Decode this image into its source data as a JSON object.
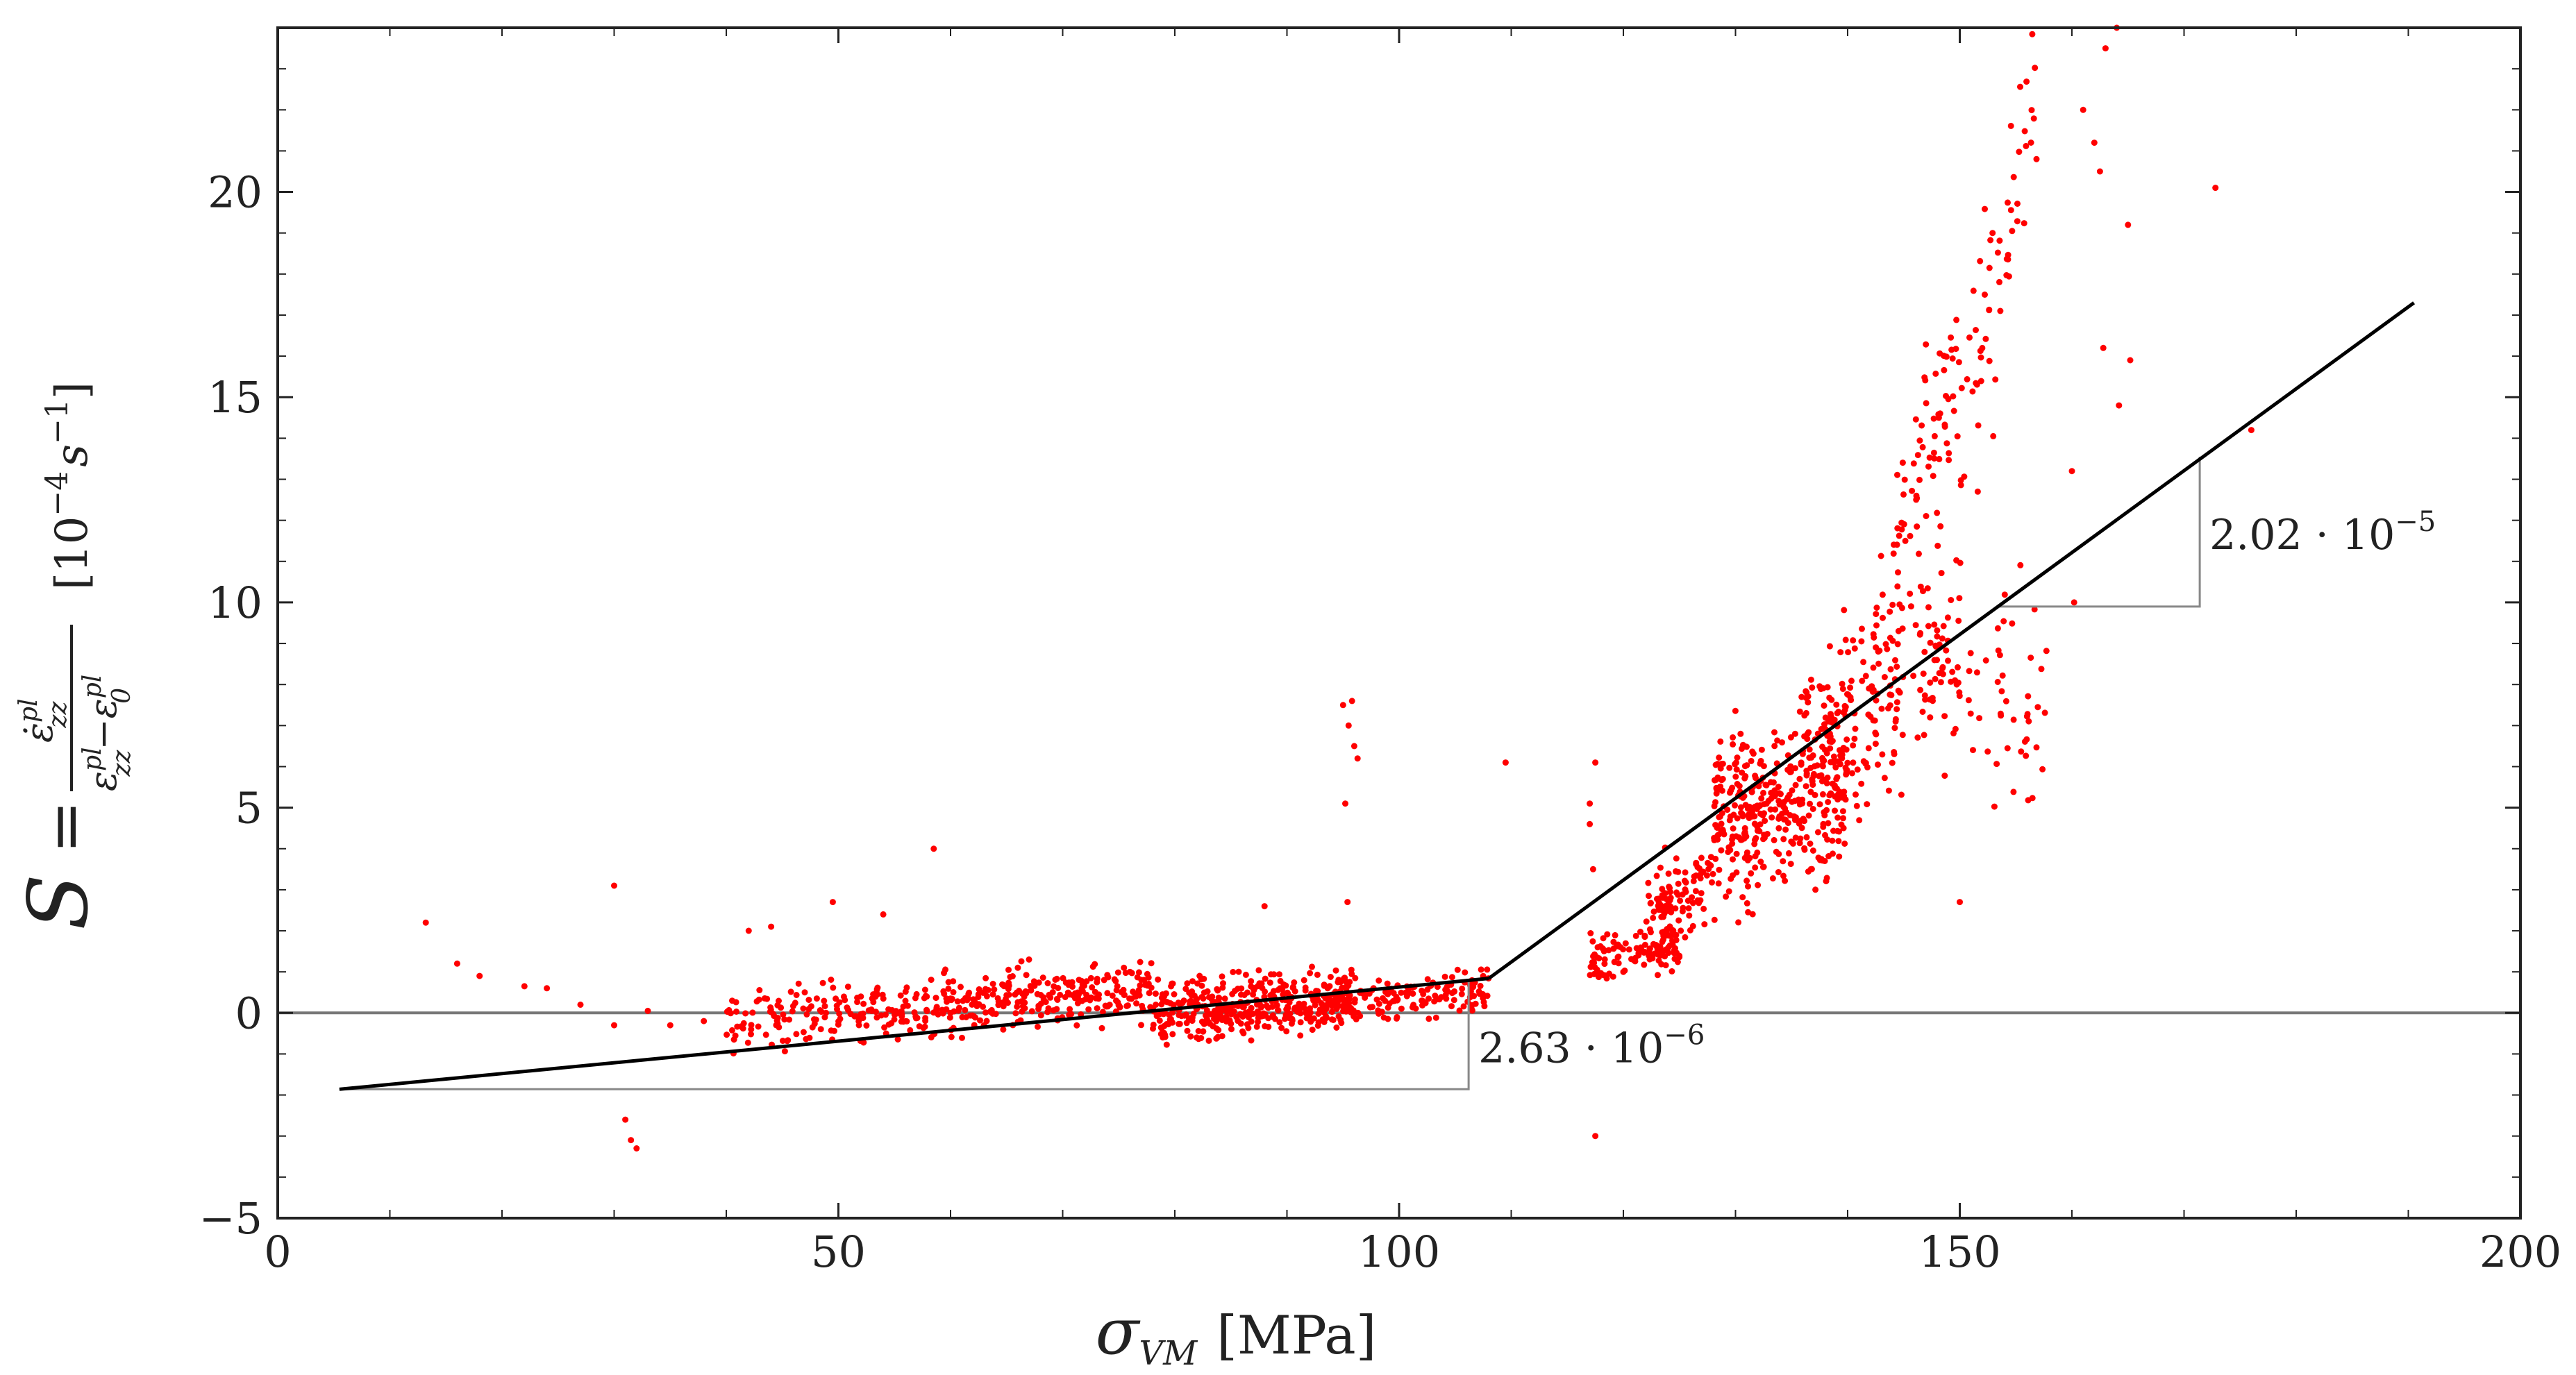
{
  "chart_data": {
    "type": "scatter",
    "xlabel": {
      "symbol": "σ",
      "subscript": "VM",
      "unit": "[MPa]"
    },
    "ylabel": {
      "symbol": "S",
      "equals": "=",
      "num_base": "ε̇",
      "num_sup": "pl",
      "num_sub": "zz",
      "den_a_base": "ε",
      "den_a_sup": "pl",
      "den_a_sub": "zz",
      "minus": "−",
      "den_b_base": "ε",
      "den_b_sup": "pl",
      "den_b_sub": "0",
      "unit_open": "[10",
      "unit_exp": "−4",
      "unit_s": "s",
      "unit_exp2": "−1",
      "unit_close": "]"
    },
    "xlim": [
      0,
      200
    ],
    "ylim": [
      -5,
      24
    ],
    "xticks": [
      0,
      50,
      100,
      150,
      200
    ],
    "xtick_labels": [
      "0",
      "50",
      "100",
      "150",
      "200"
    ],
    "yticks": [
      -5,
      0,
      5,
      10,
      15,
      20
    ],
    "ytick_labels": [
      "−5",
      "0",
      "5",
      "10",
      "15",
      "20"
    ],
    "zero_line": 0,
    "fit_lines": [
      {
        "name": "fit-low",
        "points": [
          [
            5.5,
            -1.86
          ],
          [
            108,
            0.84
          ]
        ],
        "slope_label": "2.63 · 10",
        "slope_exp": "−6",
        "triangle": {
          "x0": 5.5,
          "x1": 106.2,
          "y0": -1.86,
          "y1": 0.79
        }
      },
      {
        "name": "fit-high",
        "points": [
          [
            108,
            0.84
          ],
          [
            190.5,
            17.3
          ]
        ],
        "slope_label": "2.02 · 10",
        "slope_exp": "−5",
        "triangle": {
          "x0": 153.3,
          "x1": 171.4,
          "y0": 9.9,
          "y1": 13.55
        }
      }
    ],
    "scatter_color": "#ff0000",
    "clusters": [
      {
        "x": [
          40,
          60
        ],
        "slope": 0.026,
        "intercept": -1.3,
        "jitter": 0.35,
        "n": 190
      },
      {
        "x": [
          60,
          78
        ],
        "slope": 0.026,
        "intercept": -1.4,
        "jitter": 0.35,
        "n": 240
      },
      {
        "x": [
          78,
          96
        ],
        "slope": 0.026,
        "intercept": -2.1,
        "jitter": 0.35,
        "n": 420
      },
      {
        "x": [
          96,
          108
        ],
        "slope": 0.026,
        "intercept": -2.2,
        "jitter": 0.3,
        "n": 120
      },
      {
        "x": [
          117,
          125
        ],
        "slope": 0.05,
        "intercept": -4.6,
        "jitter": 0.3,
        "n": 110
      },
      {
        "x": [
          122,
          128
        ],
        "slope": 0.15,
        "intercept": -16.0,
        "jitter": 0.5,
        "n": 110
      },
      {
        "x": [
          128,
          140
        ],
        "slope": 0.08,
        "intercept": -5.6,
        "jitter": 1.0,
        "n": 380
      },
      {
        "x": [
          136,
          150
        ],
        "slope": 0.18,
        "intercept": -18.0,
        "jitter": 1.2,
        "n": 220
      },
      {
        "x": [
          144,
          150
        ],
        "slope": 0.8,
        "intercept": -104.0,
        "jitter": 1.2,
        "n": 70
      },
      {
        "x": [
          150,
          157
        ],
        "slope": 1.2,
        "intercept": -166.0,
        "jitter": 1.6,
        "n": 60
      },
      {
        "x": [
          150,
          158
        ],
        "slope": 0.25,
        "intercept": -31.0,
        "jitter": 1.5,
        "n": 45
      }
    ],
    "outliers": [
      [
        13.2,
        2.2
      ],
      [
        16,
        1.2
      ],
      [
        18,
        0.9
      ],
      [
        22,
        0.65
      ],
      [
        24,
        0.6
      ],
      [
        27,
        0.2
      ],
      [
        30,
        3.1
      ],
      [
        30,
        -0.3
      ],
      [
        31,
        -2.6
      ],
      [
        31.5,
        -3.1
      ],
      [
        32,
        -3.3
      ],
      [
        33,
        0.05
      ],
      [
        35,
        -0.3
      ],
      [
        38,
        -0.2
      ],
      [
        42,
        2.0
      ],
      [
        44,
        2.1
      ],
      [
        47,
        0.5
      ],
      [
        49.5,
        2.7
      ],
      [
        52,
        0.4
      ],
      [
        54,
        2.4
      ],
      [
        58.5,
        4.0
      ],
      [
        60,
        0.0
      ],
      [
        63,
        0.5
      ],
      [
        66,
        1.1
      ],
      [
        67,
        1.3
      ],
      [
        76,
        1.0
      ],
      [
        88,
        2.6
      ],
      [
        95,
        7.5
      ],
      [
        95.5,
        7.0
      ],
      [
        96,
        6.5
      ],
      [
        95.2,
        5.1
      ],
      [
        95.8,
        7.6
      ],
      [
        96.3,
        6.2
      ],
      [
        95.4,
        2.7
      ],
      [
        109.5,
        6.1
      ],
      [
        117,
        5.1
      ],
      [
        117.5,
        6.1
      ],
      [
        117,
        4.6
      ],
      [
        117.3,
        3.5
      ],
      [
        117.5,
        -3.0
      ],
      [
        117.8,
        0.9
      ],
      [
        120,
        1.0
      ],
      [
        150,
        2.7
      ],
      [
        160.2,
        10.0
      ],
      [
        160,
        13.2
      ],
      [
        161,
        22.0
      ],
      [
        162,
        21.2
      ],
      [
        162.5,
        20.5
      ],
      [
        163,
        23.5
      ],
      [
        164,
        24.0
      ],
      [
        162.8,
        16.2
      ],
      [
        165,
        19.2
      ],
      [
        165.2,
        15.9
      ],
      [
        164.2,
        14.8
      ],
      [
        172.8,
        20.1
      ],
      [
        176,
        14.2
      ]
    ]
  }
}
